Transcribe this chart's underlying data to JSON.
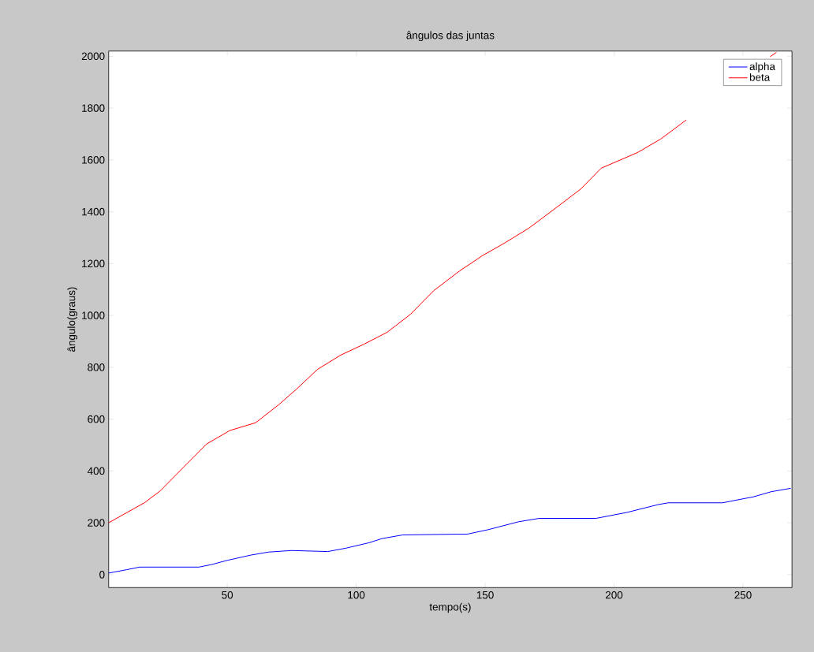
{
  "chart_data": {
    "type": "line",
    "title": "ângulos das juntas",
    "xlabel": "tempo(s)",
    "ylabel": "ângulo(graus)",
    "xlim": [
      4,
      269
    ],
    "xticks": [
      50,
      100,
      150,
      200,
      250
    ],
    "ylim": [
      -50,
      2020
    ],
    "yticks": [
      0,
      200,
      400,
      600,
      800,
      1000,
      1200,
      1400,
      1600,
      1800,
      2000
    ],
    "legend": "top right",
    "grid": false,
    "series": [
      {
        "name": "alpha",
        "color": "#0000ff",
        "x": [
          4,
          11,
          16,
          39,
          44,
          50,
          59,
          66,
          75,
          89,
          96,
          105,
          110,
          118,
          139,
          143,
          151,
          163,
          171,
          193,
          205,
          217,
          221,
          242,
          254,
          261,
          268.5
        ],
        "values": [
          6,
          19,
          29,
          29,
          39,
          55,
          75,
          87,
          93,
          89,
          102,
          123,
          139,
          153,
          156,
          156,
          173,
          204,
          217,
          217,
          240,
          270,
          277,
          277,
          300,
          320,
          333
        ]
      },
      {
        "name": "beta",
        "color": "#ff0000",
        "x": [
          4,
          18,
          24,
          33,
          42,
          51,
          61,
          70,
          77,
          85,
          94,
          103,
          112,
          121,
          130,
          140,
          149,
          158,
          167,
          176,
          187,
          195,
          209,
          218,
          228,
          240,
          249,
          260.5,
          263
        ],
        "values": [
          200,
          278,
          323,
          414,
          504,
          556,
          586,
          656,
          717,
          792,
          847,
          889,
          935,
          1004,
          1095,
          1171,
          1231,
          1282,
          1337,
          1404,
          1487,
          1568,
          1628,
          1680,
          1754,
          null,
          null,
          1998,
          2015
        ]
      }
    ]
  }
}
